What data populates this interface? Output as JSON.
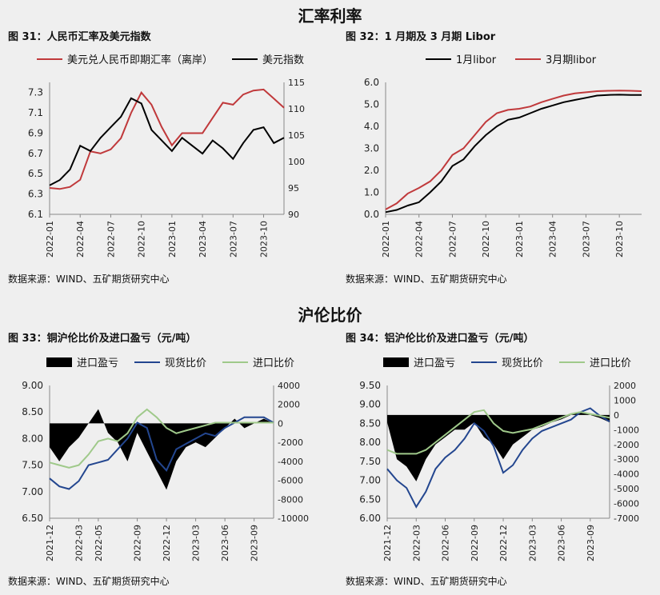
{
  "sections": {
    "rates_title": "汇率利率",
    "ratio_title": "沪伦比价"
  },
  "colors": {
    "red": "#c0393b",
    "black": "#000000",
    "blue": "#23468f",
    "green": "#9fc98a"
  },
  "charts": [
    {
      "id": "fig31",
      "fig_title": "图 31：人民币汇率及美元指数",
      "source": "数据来源：WIND、五矿期货研究中心",
      "chart_data": {
        "type": "line",
        "x_ticks": [
          "2022-01",
          "2022-04",
          "2022-07",
          "2022-10",
          "2023-01",
          "2023-04",
          "2023-07",
          "2023-10"
        ],
        "y_left_ticks": [
          "6.1",
          "6.3",
          "6.5",
          "6.7",
          "6.9",
          "7.1",
          "7.3"
        ],
        "y_right_ticks": [
          "90",
          "95",
          "100",
          "105",
          "110",
          "115"
        ],
        "ylim_left": [
          6.1,
          7.4
        ],
        "ylim_right": [
          90,
          115
        ],
        "series": [
          {
            "name": "美元兑人民币即期汇率（离岸）",
            "axis": "left",
            "color": "#c0393b",
            "x": [
              "2022-01",
              "2022-02",
              "2022-03",
              "2022-04",
              "2022-05",
              "2022-06",
              "2022-07",
              "2022-08",
              "2022-09",
              "2022-10",
              "2022-11",
              "2022-12",
              "2023-01",
              "2023-02",
              "2023-03",
              "2023-04",
              "2023-05",
              "2023-06",
              "2023-07",
              "2023-08",
              "2023-09",
              "2023-10",
              "2023-11",
              "2023-12"
            ],
            "y": [
              6.36,
              6.35,
              6.37,
              6.44,
              6.72,
              6.7,
              6.74,
              6.85,
              7.1,
              7.3,
              7.18,
              6.96,
              6.78,
              6.9,
              6.9,
              6.9,
              7.05,
              7.2,
              7.18,
              7.28,
              7.32,
              7.33,
              7.24,
              7.15
            ]
          },
          {
            "name": "美元指数",
            "axis": "right",
            "color": "#000000",
            "x": [
              "2022-01",
              "2022-02",
              "2022-03",
              "2022-04",
              "2022-05",
              "2022-06",
              "2022-07",
              "2022-08",
              "2022-09",
              "2022-10",
              "2022-11",
              "2022-12",
              "2023-01",
              "2023-02",
              "2023-03",
              "2023-04",
              "2023-05",
              "2023-06",
              "2023-07",
              "2023-08",
              "2023-09",
              "2023-10",
              "2023-11",
              "2023-12"
            ],
            "y": [
              95.5,
              96.5,
              98.5,
              103,
              102,
              104.5,
              106.5,
              108.5,
              112,
              111,
              106,
              104,
              102,
              104.5,
              103,
              101.5,
              104,
              102.5,
              100.5,
              103.5,
              106,
              106.5,
              103.5,
              104.5
            ]
          }
        ]
      }
    },
    {
      "id": "fig32",
      "fig_title": "图 32：1 月期及 3 月期 Libor",
      "source": "数据来源：WIND、五矿期货研究中心",
      "chart_data": {
        "type": "line",
        "x_ticks": [
          "2022-01",
          "2022-04",
          "2022-07",
          "2022-10",
          "2023-01",
          "2023-04",
          "2023-07",
          "2023-10"
        ],
        "y_ticks": [
          "0.0",
          "1.0",
          "2.0",
          "3.0",
          "4.0",
          "5.0",
          "6.0"
        ],
        "ylim": [
          0,
          6
        ],
        "series": [
          {
            "name": "1月libor",
            "color": "#000000",
            "x": [
              "2022-01",
              "2022-02",
              "2022-03",
              "2022-04",
              "2022-05",
              "2022-06",
              "2022-07",
              "2022-08",
              "2022-09",
              "2022-10",
              "2022-11",
              "2022-12",
              "2023-01",
              "2023-02",
              "2023-03",
              "2023-04",
              "2023-05",
              "2023-06",
              "2023-07",
              "2023-08",
              "2023-09",
              "2023-10",
              "2023-11",
              "2023-12"
            ],
            "y": [
              0.1,
              0.2,
              0.4,
              0.55,
              1.0,
              1.5,
              2.2,
              2.5,
              3.1,
              3.6,
              4.0,
              4.3,
              4.4,
              4.6,
              4.8,
              4.95,
              5.1,
              5.2,
              5.3,
              5.4,
              5.43,
              5.44,
              5.43,
              5.43
            ]
          },
          {
            "name": "3月期libor",
            "color": "#c0393b",
            "x": [
              "2022-01",
              "2022-02",
              "2022-03",
              "2022-04",
              "2022-05",
              "2022-06",
              "2022-07",
              "2022-08",
              "2022-09",
              "2022-10",
              "2022-11",
              "2022-12",
              "2023-01",
              "2023-02",
              "2023-03",
              "2023-04",
              "2023-05",
              "2023-06",
              "2023-07",
              "2023-08",
              "2023-09",
              "2023-10",
              "2023-11",
              "2023-12"
            ],
            "y": [
              0.22,
              0.5,
              0.95,
              1.2,
              1.5,
              2.0,
              2.7,
              3.0,
              3.6,
              4.2,
              4.6,
              4.75,
              4.8,
              4.9,
              5.1,
              5.25,
              5.4,
              5.5,
              5.55,
              5.6,
              5.62,
              5.63,
              5.62,
              5.6
            ]
          }
        ]
      }
    },
    {
      "id": "fig33",
      "fig_title": "图 33：铜沪伦比价及进口盈亏（元/吨）",
      "source": "数据来源：WIND、五矿期货研究中心",
      "chart_data": {
        "type": "line",
        "x_ticks": [
          "2021-12",
          "2022-03",
          "2022-05",
          "2022-09",
          "2022-12",
          "2023-03",
          "2023-06",
          "2023-09"
        ],
        "y_left_ticks": [
          "6.50",
          "7.00",
          "7.50",
          "8.00",
          "8.50",
          "9.00"
        ],
        "y_right_ticks": [
          "-10000",
          "-8000",
          "-6000",
          "-4000",
          "-2000",
          "0",
          "2000",
          "4000"
        ],
        "ylim_left": [
          6.5,
          9.0
        ],
        "ylim_right": [
          -10000,
          4000
        ],
        "series": [
          {
            "name": "进口盈亏",
            "axis": "right",
            "style": "area",
            "color": "#000000",
            "x": [
              "2021-12",
              "2022-01",
              "2022-02",
              "2022-03",
              "2022-04",
              "2022-05",
              "2022-06",
              "2022-07",
              "2022-08",
              "2022-09",
              "2022-10",
              "2022-11",
              "2022-12",
              "2023-01",
              "2023-02",
              "2023-03",
              "2023-04",
              "2023-05",
              "2023-06",
              "2023-07",
              "2023-08",
              "2023-09",
              "2023-10",
              "2023-11"
            ],
            "y": [
              -2500,
              -4000,
              -2500,
              -1500,
              0,
              1500,
              -1000,
              -2000,
              -4000,
              -1000,
              -3000,
              -5000,
              -7000,
              -4000,
              -2500,
              -2000,
              -2500,
              -1500,
              -500,
              500,
              -500,
              0,
              500,
              0
            ]
          },
          {
            "name": "现货比价",
            "axis": "left",
            "color": "#23468f",
            "x": [
              "2021-12",
              "2022-01",
              "2022-02",
              "2022-03",
              "2022-04",
              "2022-05",
              "2022-06",
              "2022-07",
              "2022-08",
              "2022-09",
              "2022-10",
              "2022-11",
              "2022-12",
              "2023-01",
              "2023-02",
              "2023-03",
              "2023-04",
              "2023-05",
              "2023-06",
              "2023-07",
              "2023-08",
              "2023-09",
              "2023-10",
              "2023-11"
            ],
            "y": [
              7.25,
              7.1,
              7.05,
              7.2,
              7.5,
              7.55,
              7.6,
              7.8,
              8.0,
              8.3,
              8.2,
              7.6,
              7.4,
              7.8,
              7.9,
              8.0,
              8.1,
              8.05,
              8.2,
              8.3,
              8.4,
              8.4,
              8.4,
              8.3
            ]
          },
          {
            "name": "进口比价",
            "axis": "left",
            "color": "#9fc98a",
            "x": [
              "2021-12",
              "2022-01",
              "2022-02",
              "2022-03",
              "2022-04",
              "2022-05",
              "2022-06",
              "2022-07",
              "2022-08",
              "2022-09",
              "2022-10",
              "2022-11",
              "2022-12",
              "2023-01",
              "2023-02",
              "2023-03",
              "2023-04",
              "2023-05",
              "2023-06",
              "2023-07",
              "2023-08",
              "2023-09",
              "2023-10",
              "2023-11"
            ],
            "y": [
              7.55,
              7.5,
              7.45,
              7.5,
              7.7,
              7.95,
              8.0,
              7.95,
              8.1,
              8.4,
              8.55,
              8.4,
              8.2,
              8.1,
              8.15,
              8.2,
              8.25,
              8.3,
              8.3,
              8.3,
              8.3,
              8.3,
              8.3,
              8.3
            ]
          }
        ]
      }
    },
    {
      "id": "fig34",
      "fig_title": "图 34：铝沪伦比价及进口盈亏（元/吨）",
      "source": "数据来源：WIND、五矿期货研究中心",
      "chart_data": {
        "type": "line",
        "x_ticks": [
          "2021-12",
          "2022-03",
          "2022-06",
          "2022-09",
          "2022-12",
          "2023-03",
          "2023-06",
          "2023-09"
        ],
        "y_left_ticks": [
          "6.00",
          "6.50",
          "7.00",
          "7.50",
          "8.00",
          "8.50",
          "9.00",
          "9.50"
        ],
        "y_right_ticks": [
          "-7000",
          "-6000",
          "-5000",
          "-4000",
          "-3000",
          "-2000",
          "-1000",
          "0",
          "1000",
          "2000"
        ],
        "ylim_left": [
          6.0,
          9.5
        ],
        "ylim_right": [
          -7000,
          2000
        ],
        "series": [
          {
            "name": "进口盈亏",
            "axis": "right",
            "style": "area",
            "color": "#000000",
            "x": [
              "2021-12",
              "2022-01",
              "2022-02",
              "2022-03",
              "2022-04",
              "2022-05",
              "2022-06",
              "2022-07",
              "2022-08",
              "2022-09",
              "2022-10",
              "2022-11",
              "2022-12",
              "2023-01",
              "2023-02",
              "2023-03",
              "2023-04",
              "2023-05",
              "2023-06",
              "2023-07",
              "2023-08",
              "2023-09",
              "2023-10",
              "2023-11"
            ],
            "y": [
              -500,
              -3000,
              -3500,
              -4500,
              -3000,
              -2000,
              -1500,
              -1000,
              -1000,
              -500,
              -1500,
              -2000,
              -3000,
              -2000,
              -1500,
              -1000,
              -800,
              -500,
              -300,
              0,
              200,
              0,
              -200,
              -500
            ]
          },
          {
            "name": "现货比价",
            "axis": "left",
            "color": "#23468f",
            "x": [
              "2021-12",
              "2022-01",
              "2022-02",
              "2022-03",
              "2022-04",
              "2022-05",
              "2022-06",
              "2022-07",
              "2022-08",
              "2022-09",
              "2022-10",
              "2022-11",
              "2022-12",
              "2023-01",
              "2023-02",
              "2023-03",
              "2023-04",
              "2023-05",
              "2023-06",
              "2023-07",
              "2023-08",
              "2023-09",
              "2023-10",
              "2023-11"
            ],
            "y": [
              7.3,
              7.0,
              6.8,
              6.3,
              6.7,
              7.3,
              7.6,
              7.8,
              8.1,
              8.5,
              8.3,
              7.9,
              7.2,
              7.4,
              7.8,
              8.1,
              8.3,
              8.4,
              8.5,
              8.6,
              8.8,
              8.9,
              8.7,
              8.55
            ]
          },
          {
            "name": "进口比价",
            "axis": "left",
            "color": "#9fc98a",
            "x": [
              "2021-12",
              "2022-01",
              "2022-02",
              "2022-03",
              "2022-04",
              "2022-05",
              "2022-06",
              "2022-07",
              "2022-08",
              "2022-09",
              "2022-10",
              "2022-11",
              "2022-12",
              "2023-01",
              "2023-02",
              "2023-03",
              "2023-04",
              "2023-05",
              "2023-06",
              "2023-07",
              "2023-08",
              "2023-09",
              "2023-10",
              "2023-11"
            ],
            "y": [
              7.8,
              7.7,
              7.7,
              7.7,
              7.8,
              8.0,
              8.2,
              8.4,
              8.6,
              8.8,
              8.85,
              8.5,
              8.3,
              8.25,
              8.3,
              8.35,
              8.45,
              8.55,
              8.65,
              8.75,
              8.8,
              8.75,
              8.7,
              8.65
            ]
          }
        ]
      }
    }
  ]
}
